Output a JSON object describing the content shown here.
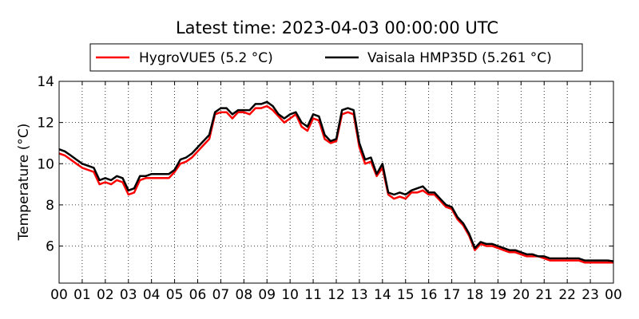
{
  "chart_data": {
    "type": "line",
    "title": "Latest time: 2023-04-03 00:00:00 UTC",
    "xlabel": "",
    "ylabel": "Temperature (°C)",
    "xlim": [
      0,
      24
    ],
    "ylim": [
      4.2,
      14
    ],
    "x_ticks": [
      0,
      1,
      2,
      3,
      4,
      5,
      6,
      7,
      8,
      9,
      10,
      11,
      12,
      13,
      14,
      15,
      16,
      17,
      18,
      19,
      20,
      21,
      22,
      23,
      24
    ],
    "x_tick_labels": [
      "00",
      "01",
      "02",
      "03",
      "04",
      "05",
      "06",
      "07",
      "08",
      "09",
      "10",
      "11",
      "12",
      "13",
      "14",
      "15",
      "16",
      "17",
      "18",
      "19",
      "20",
      "21",
      "22",
      "23",
      "00"
    ],
    "y_ticks": [
      6,
      8,
      10,
      12,
      14
    ],
    "y_tick_labels": [
      "6",
      "8",
      "10",
      "12",
      "14"
    ],
    "grid": true,
    "legend_position": "top",
    "x": [
      0,
      0.25,
      0.5,
      0.75,
      1,
      1.25,
      1.5,
      1.75,
      2,
      2.25,
      2.5,
      2.75,
      3,
      3.25,
      3.5,
      3.75,
      4,
      4.25,
      4.5,
      4.75,
      5,
      5.25,
      5.5,
      5.75,
      6,
      6.25,
      6.5,
      6.75,
      7,
      7.25,
      7.5,
      7.75,
      8,
      8.25,
      8.5,
      8.75,
      9,
      9.25,
      9.5,
      9.75,
      10,
      10.25,
      10.5,
      10.75,
      11,
      11.25,
      11.5,
      11.75,
      12,
      12.25,
      12.5,
      12.75,
      13,
      13.25,
      13.5,
      13.75,
      14,
      14.25,
      14.5,
      14.75,
      15,
      15.25,
      15.5,
      15.75,
      16,
      16.25,
      16.5,
      16.75,
      17,
      17.25,
      17.5,
      17.75,
      18,
      18.25,
      18.5,
      18.75,
      19,
      19.25,
      19.5,
      19.75,
      20,
      20.25,
      20.5,
      20.75,
      21,
      21.25,
      21.5,
      21.75,
      22,
      22.25,
      22.5,
      22.75,
      23,
      23.25,
      23.5,
      23.75,
      24
    ],
    "series": [
      {
        "name": "HygroVUE5 (5.2 °C)",
        "color": "#ff0000",
        "values": [
          10.5,
          10.4,
          10.2,
          10.0,
          9.8,
          9.7,
          9.6,
          9.0,
          9.1,
          9.0,
          9.2,
          9.1,
          8.5,
          8.6,
          9.2,
          9.3,
          9.3,
          9.3,
          9.3,
          9.3,
          9.6,
          10.0,
          10.1,
          10.3,
          10.6,
          10.9,
          11.2,
          12.4,
          12.5,
          12.5,
          12.2,
          12.5,
          12.5,
          12.4,
          12.7,
          12.7,
          12.8,
          12.6,
          12.3,
          12.0,
          12.2,
          12.4,
          11.8,
          11.6,
          12.2,
          12.1,
          11.2,
          11.0,
          11.1,
          12.4,
          12.5,
          12.4,
          10.8,
          10.0,
          10.1,
          9.4,
          9.8,
          8.5,
          8.3,
          8.4,
          8.3,
          8.6,
          8.6,
          8.7,
          8.5,
          8.5,
          8.2,
          7.9,
          7.8,
          7.3,
          7.0,
          6.5,
          5.8,
          6.1,
          6.0,
          6.0,
          5.9,
          5.8,
          5.7,
          5.7,
          5.6,
          5.5,
          5.5,
          5.5,
          5.4,
          5.3,
          5.3,
          5.3,
          5.3,
          5.3,
          5.3,
          5.2,
          5.2,
          5.2,
          5.2,
          5.2,
          5.2
        ]
      },
      {
        "name": "Vaisala HMP35D (5.261 °C)",
        "color": "#000000",
        "values": [
          10.7,
          10.6,
          10.4,
          10.2,
          10.0,
          9.9,
          9.8,
          9.2,
          9.3,
          9.2,
          9.4,
          9.3,
          8.7,
          8.8,
          9.4,
          9.4,
          9.5,
          9.5,
          9.5,
          9.5,
          9.7,
          10.2,
          10.3,
          10.5,
          10.8,
          11.1,
          11.4,
          12.5,
          12.7,
          12.7,
          12.4,
          12.6,
          12.6,
          12.6,
          12.9,
          12.9,
          13.0,
          12.8,
          12.4,
          12.2,
          12.4,
          12.5,
          12.0,
          11.8,
          12.4,
          12.3,
          11.4,
          11.1,
          11.2,
          12.6,
          12.7,
          12.6,
          11.0,
          10.2,
          10.3,
          9.5,
          10.0,
          8.6,
          8.5,
          8.6,
          8.5,
          8.7,
          8.8,
          8.9,
          8.6,
          8.6,
          8.3,
          8.0,
          7.9,
          7.4,
          7.1,
          6.6,
          5.9,
          6.2,
          6.1,
          6.1,
          6.0,
          5.9,
          5.8,
          5.8,
          5.7,
          5.6,
          5.6,
          5.5,
          5.5,
          5.4,
          5.4,
          5.4,
          5.4,
          5.4,
          5.4,
          5.3,
          5.3,
          5.3,
          5.3,
          5.3,
          5.261
        ]
      }
    ]
  }
}
